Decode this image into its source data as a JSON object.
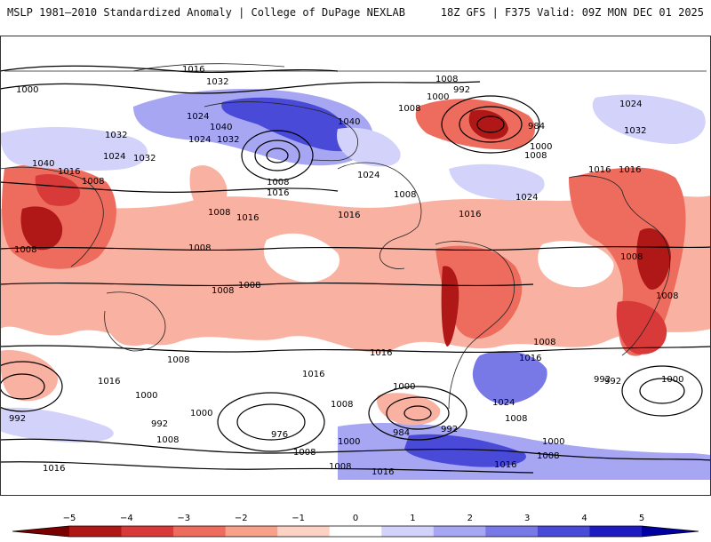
{
  "header": {
    "title": "MSLP 1981–2010 Standardized Anomaly | College of DuPage NEXLAB",
    "model_info": "18Z GFS | F375 Valid: 09Z MON DEC 01 2025"
  },
  "legend": {
    "ticks": [
      "−5",
      "−4",
      "−3",
      "−2",
      "−1",
      "0",
      "1",
      "2",
      "3",
      "4",
      "5"
    ],
    "colors": [
      "#7a0000",
      "#b01818",
      "#d83a3a",
      "#ee6c5e",
      "#f8a08a",
      "#fcd2c4",
      "#ffffff",
      "#d2d2fa",
      "#a6a6f2",
      "#7878e6",
      "#4a4ad8",
      "#1c1cc0",
      "#0000a0"
    ]
  },
  "map": {
    "contour_labels": [
      "1016",
      "1000",
      "1032",
      "1024",
      "1040",
      "1032",
      "1024",
      "1032",
      "1024",
      "1032",
      "1040",
      "1040",
      "1016",
      "1008",
      "1008",
      "1016",
      "1008",
      "1016",
      "1024",
      "1008",
      "1016",
      "1008",
      "1000",
      "992",
      "1008",
      "984",
      "1000",
      "1008",
      "1024",
      "1032",
      "1016",
      "1016",
      "1024",
      "1016",
      "1008",
      "1008",
      "1008",
      "1008",
      "1008",
      "1008",
      "1008",
      "1016",
      "1016",
      "1008",
      "1016",
      "1000",
      "1024",
      "992",
      "1000",
      "1016",
      "1008",
      "1000",
      "1008",
      "992",
      "1000",
      "976",
      "992",
      "1008",
      "1000",
      "984",
      "992",
      "1008",
      "1000",
      "1008",
      "1016",
      "1016",
      "1008",
      "1016",
      "992"
    ]
  }
}
